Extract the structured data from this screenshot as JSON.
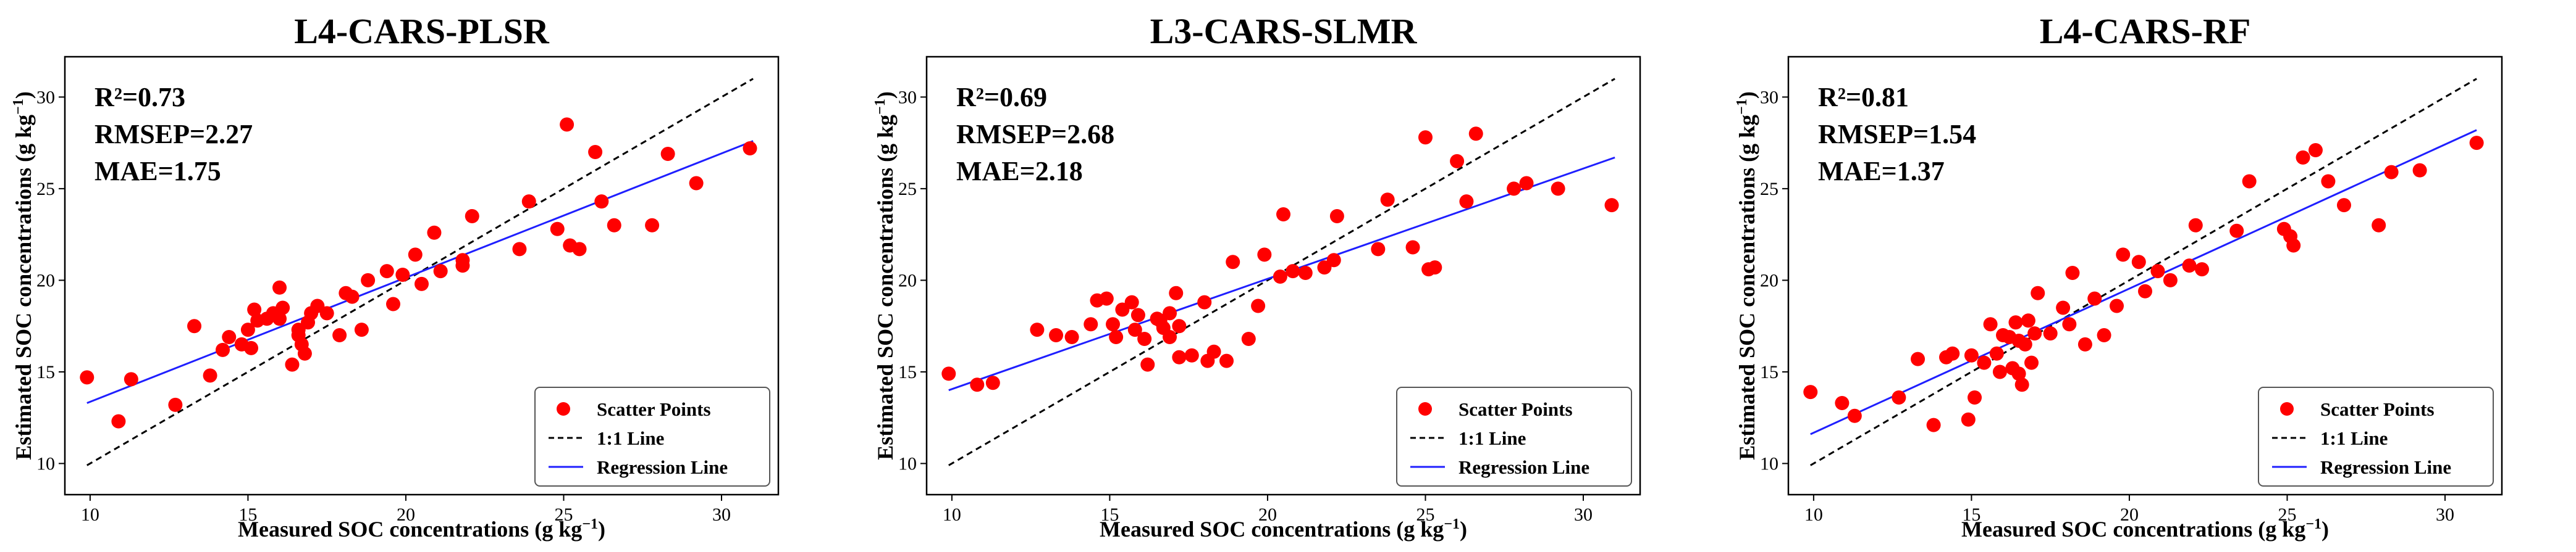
{
  "chart_data": [
    {
      "type": "scatter",
      "title": "L4-CARS-PLSR",
      "xlabel": "Measured SOC concentrations (g kg⁻¹)",
      "ylabel": "Estimated SOC concentrations (g kg⁻¹)",
      "xlim": [
        9.2,
        31.8
      ],
      "ylim": [
        8.3,
        32.2
      ],
      "xticks": [
        "10",
        "15",
        "20",
        "25",
        "30"
      ],
      "yticks": [
        "10",
        "15",
        "20",
        "25",
        "30"
      ],
      "stats": [
        "R²=0.73",
        "RMSEP=2.27",
        "MAE=1.75"
      ],
      "legend": [
        "Scatter Points",
        "1:1 Line",
        "Regression Line"
      ],
      "legend_position": "bottom-right",
      "one_to_one": [
        [
          9.9,
          9.9
        ],
        [
          31.0,
          31.0
        ]
      ],
      "regression": [
        [
          9.9,
          13.3
        ],
        [
          31.0,
          27.6
        ]
      ],
      "points": [
        [
          9.9,
          14.7
        ],
        [
          10.9,
          12.3
        ],
        [
          11.3,
          14.6
        ],
        [
          12.7,
          13.2
        ],
        [
          13.3,
          17.5
        ],
        [
          13.8,
          14.8
        ],
        [
          14.2,
          16.2
        ],
        [
          14.4,
          16.9
        ],
        [
          14.8,
          16.5
        ],
        [
          15.0,
          17.3
        ],
        [
          15.1,
          16.3
        ],
        [
          15.3,
          17.8
        ],
        [
          15.2,
          18.4
        ],
        [
          15.6,
          17.9
        ],
        [
          15.8,
          18.2
        ],
        [
          16.0,
          17.9
        ],
        [
          16.1,
          18.5
        ],
        [
          16.0,
          19.6
        ],
        [
          16.4,
          15.4
        ],
        [
          16.6,
          17.3
        ],
        [
          16.6,
          17.0
        ],
        [
          16.7,
          16.5
        ],
        [
          16.8,
          16.0
        ],
        [
          16.9,
          17.7
        ],
        [
          17.0,
          18.2
        ],
        [
          17.2,
          18.6
        ],
        [
          17.5,
          18.2
        ],
        [
          17.9,
          17.0
        ],
        [
          18.1,
          19.3
        ],
        [
          18.3,
          19.1
        ],
        [
          18.6,
          17.3
        ],
        [
          18.8,
          20.0
        ],
        [
          19.4,
          20.5
        ],
        [
          19.6,
          18.7
        ],
        [
          19.9,
          20.3
        ],
        [
          20.3,
          21.4
        ],
        [
          20.5,
          19.8
        ],
        [
          20.9,
          22.6
        ],
        [
          21.1,
          20.5
        ],
        [
          21.8,
          21.1
        ],
        [
          21.8,
          20.8
        ],
        [
          22.1,
          23.5
        ],
        [
          23.6,
          21.7
        ],
        [
          23.9,
          24.3
        ],
        [
          24.8,
          22.8
        ],
        [
          25.1,
          28.5
        ],
        [
          25.2,
          21.9
        ],
        [
          25.5,
          21.7
        ],
        [
          26.0,
          27.0
        ],
        [
          26.2,
          24.3
        ],
        [
          26.6,
          23.0
        ],
        [
          27.8,
          23.0
        ],
        [
          28.3,
          26.9
        ],
        [
          29.2,
          25.3
        ],
        [
          30.9,
          27.2
        ]
      ]
    },
    {
      "type": "scatter",
      "title": "L3-CARS-SLMR",
      "xlabel": "Measured SOC concentrations (g kg⁻¹)",
      "ylabel": "Estimated SOC concentrations (g kg⁻¹)",
      "xlim": [
        9.2,
        31.8
      ],
      "ylim": [
        8.3,
        32.2
      ],
      "xticks": [
        "10",
        "15",
        "20",
        "25",
        "30"
      ],
      "yticks": [
        "10",
        "15",
        "20",
        "25",
        "30"
      ],
      "stats": [
        "R²=0.69",
        "RMSEP=2.68",
        "MAE=2.18"
      ],
      "legend": [
        "Scatter Points",
        "1:1 Line",
        "Regression Line"
      ],
      "legend_position": "bottom-right",
      "one_to_one": [
        [
          9.9,
          9.9
        ],
        [
          31.0,
          31.0
        ]
      ],
      "regression": [
        [
          9.9,
          14.0
        ],
        [
          31.0,
          26.7
        ]
      ],
      "points": [
        [
          9.9,
          14.9
        ],
        [
          10.8,
          14.3
        ],
        [
          11.3,
          14.4
        ],
        [
          12.7,
          17.3
        ],
        [
          13.3,
          17.0
        ],
        [
          13.8,
          16.9
        ],
        [
          14.4,
          17.6
        ],
        [
          14.6,
          18.9
        ],
        [
          14.9,
          19.0
        ],
        [
          15.1,
          17.6
        ],
        [
          15.2,
          16.9
        ],
        [
          15.4,
          18.4
        ],
        [
          15.7,
          18.8
        ],
        [
          15.8,
          17.3
        ],
        [
          15.9,
          18.1
        ],
        [
          16.1,
          16.8
        ],
        [
          16.2,
          15.4
        ],
        [
          16.5,
          17.9
        ],
        [
          16.6,
          17.8
        ],
        [
          16.7,
          17.4
        ],
        [
          16.9,
          16.9
        ],
        [
          16.9,
          18.2
        ],
        [
          17.1,
          19.3
        ],
        [
          17.2,
          17.5
        ],
        [
          17.2,
          15.8
        ],
        [
          17.6,
          15.9
        ],
        [
          18.0,
          18.8
        ],
        [
          18.1,
          15.6
        ],
        [
          18.3,
          16.1
        ],
        [
          18.7,
          15.6
        ],
        [
          18.9,
          21.0
        ],
        [
          19.4,
          16.8
        ],
        [
          19.7,
          18.6
        ],
        [
          19.9,
          21.4
        ],
        [
          20.4,
          20.2
        ],
        [
          20.5,
          23.6
        ],
        [
          20.8,
          20.5
        ],
        [
          21.2,
          20.4
        ],
        [
          21.8,
          20.7
        ],
        [
          22.1,
          21.1
        ],
        [
          22.2,
          23.5
        ],
        [
          23.5,
          21.7
        ],
        [
          23.8,
          24.4
        ],
        [
          24.6,
          21.8
        ],
        [
          25.0,
          27.8
        ],
        [
          25.1,
          20.6
        ],
        [
          25.3,
          20.7
        ],
        [
          26.0,
          26.5
        ],
        [
          26.3,
          24.3
        ],
        [
          26.6,
          28.0
        ],
        [
          27.8,
          25.0
        ],
        [
          28.2,
          25.3
        ],
        [
          29.2,
          25.0
        ],
        [
          30.9,
          24.1
        ]
      ]
    },
    {
      "type": "scatter",
      "title": "L4-CARS-RF",
      "xlabel": "Measured SOC concentrations (g kg⁻¹)",
      "ylabel": "Estimated SOC concentrations (g kg⁻¹)",
      "xlim": [
        9.2,
        31.8
      ],
      "ylim": [
        8.3,
        32.2
      ],
      "xticks": [
        "10",
        "15",
        "20",
        "25",
        "30"
      ],
      "yticks": [
        "10",
        "15",
        "20",
        "25",
        "30"
      ],
      "stats": [
        "R²=0.81",
        "RMSEP=1.54",
        "MAE=1.37"
      ],
      "legend": [
        "Scatter Points",
        "1:1 Line",
        "Regression Line"
      ],
      "legend_position": "bottom-right",
      "one_to_one": [
        [
          9.9,
          9.9
        ],
        [
          31.0,
          31.0
        ]
      ],
      "regression": [
        [
          9.9,
          11.6
        ],
        [
          31.0,
          28.2
        ]
      ],
      "points": [
        [
          9.9,
          13.9
        ],
        [
          10.9,
          13.3
        ],
        [
          11.3,
          12.6
        ],
        [
          12.7,
          13.6
        ],
        [
          13.3,
          15.7
        ],
        [
          13.8,
          12.1
        ],
        [
          14.2,
          15.8
        ],
        [
          14.4,
          16.0
        ],
        [
          14.9,
          12.4
        ],
        [
          15.0,
          15.9
        ],
        [
          15.1,
          13.6
        ],
        [
          15.4,
          15.5
        ],
        [
          15.6,
          17.6
        ],
        [
          15.8,
          16.0
        ],
        [
          15.9,
          15.0
        ],
        [
          16.0,
          17.0
        ],
        [
          16.2,
          16.9
        ],
        [
          16.3,
          15.2
        ],
        [
          16.4,
          17.7
        ],
        [
          16.5,
          14.9
        ],
        [
          16.5,
          16.7
        ],
        [
          16.6,
          14.3
        ],
        [
          16.7,
          16.5
        ],
        [
          16.8,
          17.8
        ],
        [
          16.9,
          15.5
        ],
        [
          17.0,
          17.1
        ],
        [
          17.1,
          19.3
        ],
        [
          17.5,
          17.1
        ],
        [
          17.9,
          18.5
        ],
        [
          18.1,
          17.6
        ],
        [
          18.2,
          20.4
        ],
        [
          18.6,
          16.5
        ],
        [
          18.9,
          19.0
        ],
        [
          19.2,
          17.0
        ],
        [
          19.6,
          18.6
        ],
        [
          19.8,
          21.4
        ],
        [
          20.3,
          21.0
        ],
        [
          20.5,
          19.4
        ],
        [
          20.9,
          20.5
        ],
        [
          21.3,
          20.0
        ],
        [
          21.9,
          20.8
        ],
        [
          22.1,
          23.0
        ],
        [
          22.3,
          20.6
        ],
        [
          23.4,
          22.7
        ],
        [
          23.8,
          25.4
        ],
        [
          24.9,
          22.8
        ],
        [
          25.1,
          22.4
        ],
        [
          25.2,
          21.9
        ],
        [
          25.5,
          26.7
        ],
        [
          25.9,
          27.1
        ],
        [
          26.3,
          25.4
        ],
        [
          26.8,
          24.1
        ],
        [
          27.9,
          23.0
        ],
        [
          28.3,
          25.9
        ],
        [
          29.2,
          26.0
        ],
        [
          31.0,
          27.5
        ]
      ]
    }
  ]
}
